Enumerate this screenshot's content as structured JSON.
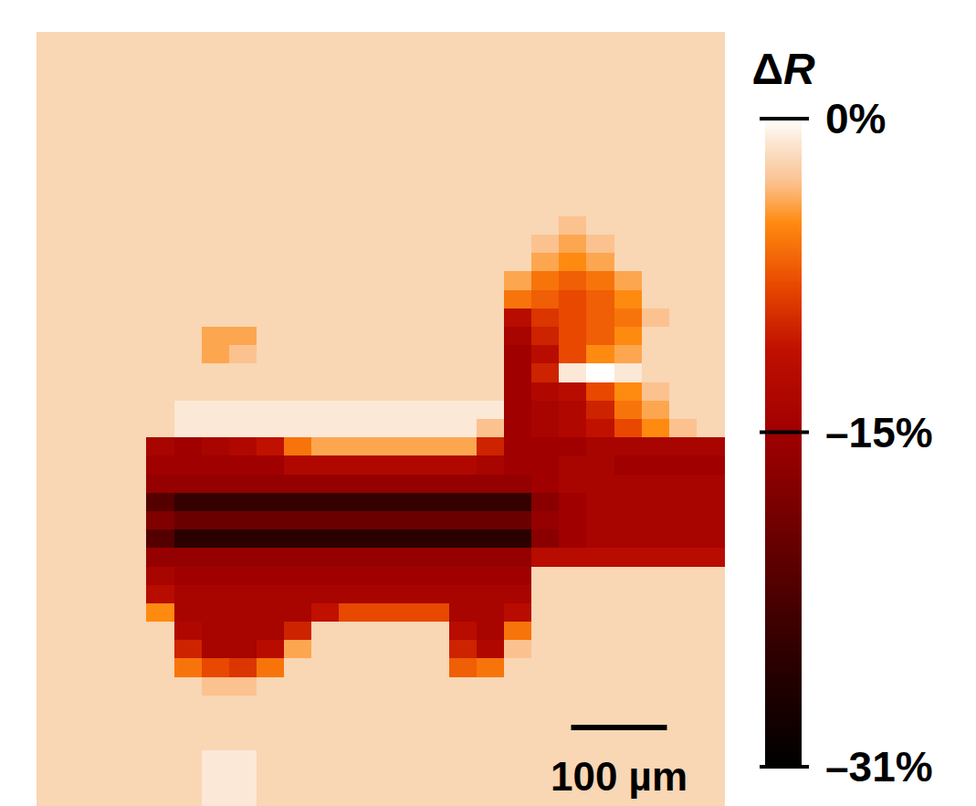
{
  "chart_data": {
    "type": "heatmap",
    "tick_labels": false,
    "extent": [
      717,
      807
    ],
    "scale_bar": {
      "length": 100,
      "label": "100 µm"
    },
    "colorbar": {
      "label": "ΔR",
      "range": [
        -31,
        0
      ],
      "ticks": [
        {
          "value": 0,
          "label": "0%"
        },
        {
          "value": -15,
          "label": "–15%"
        },
        {
          "value": -31,
          "label": "–31%"
        }
      ]
    },
    "cells": [
      [
        -2,
        -2,
        -2,
        -2,
        -2,
        -2,
        -2,
        -2,
        -2,
        -2,
        -2,
        -2,
        -2,
        -2,
        -2,
        -2,
        -2,
        -2,
        -2,
        -2,
        -2,
        -2,
        -2,
        -2,
        -2
      ],
      [
        -2,
        -2,
        -2,
        -2,
        -2,
        -2,
        -2,
        -2,
        -2,
        -2,
        -2,
        -2,
        -2,
        -2,
        -2,
        -2,
        -2,
        -2,
        -2,
        -2,
        -2,
        -2,
        -2,
        -2,
        -2
      ],
      [
        -2,
        -2,
        -2,
        -2,
        -2,
        -2,
        -2,
        -2,
        -2,
        -2,
        -2,
        -2,
        -2,
        -2,
        -2,
        -2,
        -2,
        -2,
        -2,
        -2,
        -2,
        -2,
        -2,
        -2,
        -2
      ],
      [
        -2,
        -2,
        -2,
        -2,
        -2,
        -2,
        -2,
        -2,
        -2,
        -2,
        -2,
        -2,
        -2,
        -2,
        -2,
        -2,
        -2,
        -2,
        -2,
        -2,
        -2,
        -2,
        -2,
        -2,
        -2
      ],
      [
        -2,
        -2,
        -2,
        -2,
        -2,
        -2,
        -2,
        -2,
        -2,
        -2,
        -2,
        -2,
        -2,
        -2,
        -2,
        -2,
        -2,
        -2,
        -2,
        -2,
        -2,
        -2,
        -2,
        -2,
        -2
      ],
      [
        -2,
        -2,
        -2,
        -2,
        -2,
        -2,
        -2,
        -2,
        -2,
        -2,
        -2,
        -2,
        -2,
        -2,
        -2,
        -2,
        -2,
        -2,
        -2,
        -2,
        -2,
        -2,
        -2,
        -2,
        -2
      ],
      [
        -2,
        -2,
        -2,
        -2,
        -2,
        -2,
        -2,
        -2,
        -2,
        -2,
        -2,
        -2,
        -2,
        -2,
        -2,
        -2,
        -2,
        -2,
        -2,
        -2,
        -2,
        -2,
        -2,
        -2,
        -2
      ],
      [
        -2,
        -2,
        -2,
        -2,
        -2,
        -2,
        -2,
        -2,
        -2,
        -2,
        -2,
        -2,
        -2,
        -2,
        -2,
        -2,
        -2,
        -2,
        -2,
        -2,
        -2,
        -2,
        -2,
        -2,
        -2
      ],
      [
        -2,
        -2,
        -2,
        -2,
        -2,
        -2,
        -2,
        -2,
        -2,
        -2,
        -2,
        -2,
        -2,
        -2,
        -2,
        -2,
        -2,
        -2,
        -2,
        -2,
        -2,
        -2,
        -2,
        -2,
        -2
      ],
      [
        -2,
        -2,
        -2,
        -2,
        -2,
        -2,
        -2,
        -2,
        -2,
        -2,
        -2,
        -2,
        -2,
        -2,
        -2,
        -2,
        -2,
        -2,
        -2,
        -2,
        -2,
        -2,
        -2,
        -2,
        -2
      ],
      [
        -2,
        -2,
        -2,
        -2,
        -2,
        -2,
        -2,
        -2,
        -2,
        -2,
        -2,
        -2,
        -2,
        -2,
        -2,
        -2,
        -2,
        -2,
        -2,
        -3,
        -2,
        -2,
        -2,
        -2,
        -2
      ],
      [
        -2,
        -2,
        -2,
        -2,
        -2,
        -2,
        -2,
        -2,
        -2,
        -2,
        -2,
        -2,
        -2,
        -2,
        -2,
        -2,
        -2,
        -2,
        -3,
        -4,
        -3,
        -2,
        -2,
        -2,
        -2
      ],
      [
        -2,
        -2,
        -2,
        -2,
        -2,
        -2,
        -2,
        -2,
        -2,
        -2,
        -2,
        -2,
        -2,
        -2,
        -2,
        -2,
        -2,
        -2,
        -4,
        -5,
        -4,
        -2,
        -2,
        -2,
        -2
      ],
      [
        -2,
        -2,
        -2,
        -2,
        -2,
        -2,
        -2,
        -2,
        -2,
        -2,
        -2,
        -2,
        -2,
        -2,
        -2,
        -2,
        -2,
        -4,
        -6,
        -7,
        -6,
        -4,
        -2,
        -2,
        -2
      ],
      [
        -2,
        -2,
        -2,
        -2,
        -2,
        -2,
        -2,
        -2,
        -2,
        -2,
        -2,
        -2,
        -2,
        -2,
        -2,
        -2,
        -2,
        -6,
        -7,
        -8,
        -7,
        -5,
        -2,
        -2,
        -2
      ],
      [
        -2,
        -2,
        -2,
        -2,
        -2,
        -2,
        -2,
        -2,
        -2,
        -2,
        -2,
        -2,
        -2,
        -2,
        -2,
        -2,
        -2,
        -12,
        -9,
        -8,
        -7,
        -6,
        -3,
        -2,
        -2
      ],
      [
        -2,
        -2,
        -2,
        -2,
        -2,
        -2,
        -4,
        -4,
        -2,
        -2,
        -2,
        -2,
        -2,
        -2,
        -2,
        -2,
        -2,
        -14,
        -10,
        -8,
        -7,
        -5,
        -2,
        -2,
        -2
      ],
      [
        -2,
        -2,
        -2,
        -2,
        -2,
        -2,
        -4,
        -3,
        -2,
        -2,
        -2,
        -2,
        -2,
        -2,
        -2,
        -2,
        -2,
        -15,
        -12,
        -8,
        -5,
        -4,
        -2,
        -2,
        -2
      ],
      [
        -2,
        -2,
        -2,
        -2,
        -2,
        -2,
        -2,
        -2,
        -2,
        -2,
        -2,
        -2,
        -2,
        -2,
        -2,
        -2,
        -2,
        -15,
        -10,
        -1,
        0,
        -1,
        -2,
        -2,
        -2
      ],
      [
        -2,
        -2,
        -2,
        -2,
        -2,
        -2,
        -2,
        -2,
        -2,
        -2,
        -2,
        -2,
        -2,
        -2,
        -2,
        -2,
        -2,
        -15,
        -13,
        -12,
        -8,
        -5,
        -3,
        -2,
        -2
      ],
      [
        -2,
        -2,
        -2,
        -2,
        -2,
        -1,
        -1,
        -1,
        -1,
        -1,
        -1,
        -1,
        -1,
        -1,
        -1,
        -1,
        -1,
        -15,
        -14,
        -13,
        -10,
        -6,
        -4,
        -2,
        -2
      ],
      [
        -2,
        -2,
        -2,
        -2,
        -2,
        -1,
        -1,
        -1,
        -1,
        -1,
        -1,
        -1,
        -1,
        -1,
        -1,
        -1,
        -3,
        -15,
        -14,
        -13,
        -11,
        -8,
        -5,
        -3,
        -2
      ],
      [
        -2,
        -2,
        -2,
        -2,
        -14,
        -15,
        -14,
        -13,
        -11,
        -6,
        -4,
        -4,
        -4,
        -4,
        -4,
        -4,
        -10,
        -15,
        -15,
        -15,
        -14,
        -14,
        -14,
        -14,
        -14
      ],
      [
        -2,
        -2,
        -2,
        -2,
        -15,
        -15,
        -15,
        -15,
        -15,
        -13,
        -13,
        -13,
        -13,
        -13,
        -13,
        -13,
        -14,
        -15,
        -15,
        -14,
        -14,
        -15,
        -15,
        -15,
        -15
      ],
      [
        -2,
        -2,
        -2,
        -2,
        -16,
        -16,
        -16,
        -16,
        -16,
        -16,
        -16,
        -16,
        -16,
        -16,
        -16,
        -16,
        -16,
        -16,
        -15,
        -14,
        -14,
        -14,
        -14,
        -14,
        -14
      ],
      [
        -2,
        -2,
        -2,
        -2,
        -22,
        -25,
        -25,
        -25,
        -25,
        -25,
        -25,
        -25,
        -25,
        -25,
        -25,
        -25,
        -25,
        -25,
        -17,
        -15,
        -14,
        -14,
        -14,
        -14,
        -14
      ],
      [
        -2,
        -2,
        -2,
        -2,
        -18,
        -20,
        -20,
        -20,
        -20,
        -20,
        -20,
        -20,
        -20,
        -20,
        -20,
        -20,
        -20,
        -20,
        -16,
        -15,
        -14,
        -14,
        -14,
        -14,
        -14
      ],
      [
        -2,
        -2,
        -2,
        -2,
        -22,
        -26,
        -26,
        -26,
        -26,
        -26,
        -26,
        -26,
        -26,
        -26,
        -26,
        -26,
        -26,
        -26,
        -17,
        -15,
        -14,
        -14,
        -14,
        -14,
        -14
      ],
      [
        -2,
        -2,
        -2,
        -2,
        -16,
        -16,
        -16,
        -16,
        -16,
        -16,
        -16,
        -16,
        -16,
        -16,
        -16,
        -16,
        -16,
        -16,
        -12,
        -12,
        -12,
        -12,
        -12,
        -12,
        -12
      ],
      [
        -2,
        -2,
        -2,
        -2,
        -14,
        -15,
        -15,
        -15,
        -15,
        -15,
        -15,
        -15,
        -15,
        -15,
        -15,
        -15,
        -15,
        -15,
        -2,
        -2,
        -2,
        -2,
        -2,
        -2,
        -2
      ],
      [
        -2,
        -2,
        -2,
        -2,
        -12,
        -14,
        -14,
        -14,
        -14,
        -14,
        -14,
        -14,
        -14,
        -14,
        -14,
        -14,
        -14,
        -14,
        -2,
        -2,
        -2,
        -2,
        -2,
        -2,
        -2
      ],
      [
        -2,
        -2,
        -2,
        -2,
        -5,
        -14,
        -14,
        -14,
        -14,
        -14,
        -11,
        -8,
        -8,
        -8,
        -8,
        -14,
        -14,
        -12,
        -2,
        -2,
        -2,
        -2,
        -2,
        -2,
        -2
      ],
      [
        -2,
        -2,
        -2,
        -2,
        -2,
        -13,
        -14,
        -14,
        -14,
        -10,
        -2,
        -2,
        -2,
        -2,
        -2,
        -12,
        -14,
        -6,
        -2,
        -2,
        -2,
        -2,
        -2,
        -2,
        -2
      ],
      [
        -2,
        -2,
        -2,
        -2,
        -2,
        -10,
        -14,
        -14,
        -12,
        -4,
        -2,
        -2,
        -2,
        -2,
        -2,
        -10,
        -13,
        -3,
        -2,
        -2,
        -2,
        -2,
        -2,
        -2,
        -2
      ],
      [
        -2,
        -2,
        -2,
        -2,
        -2,
        -6,
        -8,
        -9,
        -6,
        -2,
        -2,
        -2,
        -2,
        -2,
        -2,
        -7,
        -6,
        -2,
        -2,
        -2,
        -2,
        -2,
        -2,
        -2,
        -2
      ],
      [
        -2,
        -2,
        -2,
        -2,
        -2,
        -2,
        -3,
        -3,
        -2,
        -2,
        -2,
        -2,
        -2,
        -2,
        -2,
        -2,
        -2,
        -2,
        -2,
        -2,
        -2,
        -2,
        -2,
        -2,
        -2
      ],
      [
        -2,
        -2,
        -2,
        -2,
        -2,
        -2,
        -2,
        -2,
        -2,
        -2,
        -2,
        -2,
        -2,
        -2,
        -2,
        -2,
        -2,
        -2,
        -2,
        -2,
        -2,
        -2,
        -2,
        -2,
        -2
      ],
      [
        -2,
        -2,
        -2,
        -2,
        -2,
        -2,
        -2,
        -2,
        -2,
        -2,
        -2,
        -2,
        -2,
        -2,
        -2,
        -2,
        -2,
        -2,
        -2,
        -2,
        -2,
        -2,
        -2,
        -2,
        -2
      ],
      [
        -2,
        -2,
        -2,
        -2,
        -2,
        -2,
        -2,
        -2,
        -2,
        -2,
        -2,
        -2,
        -2,
        -2,
        -2,
        -2,
        -2,
        -2,
        -2,
        -2,
        -2,
        -2,
        -2,
        -2,
        -2
      ],
      [
        -2,
        -2,
        -2,
        -2,
        -2,
        -2,
        -1,
        -1,
        -2,
        -2,
        -2,
        -2,
        -2,
        -2,
        -2,
        -2,
        -2,
        -2,
        -2,
        -2,
        -2,
        -2,
        -2,
        -2,
        -2
      ],
      [
        -2,
        -2,
        -2,
        -2,
        -2,
        -2,
        -1,
        -1,
        -2,
        -2,
        -2,
        -2,
        -2,
        -2,
        -2,
        -2,
        -2,
        -2,
        -2,
        -2,
        -2,
        -2,
        -2,
        -2,
        -2
      ],
      [
        -2,
        -2,
        -2,
        -2,
        -2,
        -2,
        -1,
        -1,
        -2,
        -2,
        -2,
        -2,
        -2,
        -2,
        -2,
        -2,
        -2,
        -2,
        -2,
        -2,
        -2,
        -2,
        -2,
        -2,
        -2
      ]
    ]
  }
}
